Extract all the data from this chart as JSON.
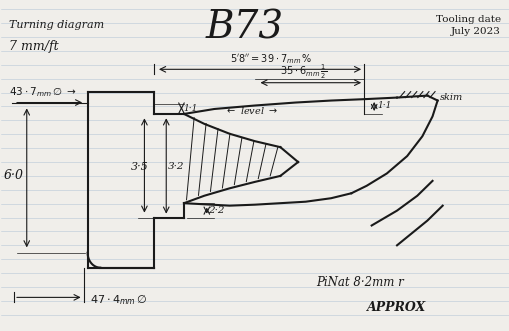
{
  "title": "B73",
  "subtitle_left": "Turning diagram",
  "subtitle_left2": "7 mm/ft",
  "subtitle_right": "Tooling date\nJuly 2023",
  "bg_color": "#f0eeea",
  "line_color": "#1a1a1a",
  "line_width": 1.5,
  "annotations": {
    "dim_58": "5′8″=39· 7ₘₘ¹⁄₀",
    "dim_356": "35·6ₘₘ ½ₑ",
    "dim_437": "43· 7ₘₘ Ø",
    "dim_11a": "1·1",
    "dim_11b": "1·1",
    "dim_60": "6·0",
    "dim_35": "3·5",
    "dim_32": "3·2",
    "dim_22": "2·2",
    "label_level": "← level →",
    "label_skim": "skim",
    "dim_474": "47·4ₘₘ Ø",
    "label_pinat": "PiNat 8·2ₘₘ r",
    "label_approx": "APPROX"
  }
}
